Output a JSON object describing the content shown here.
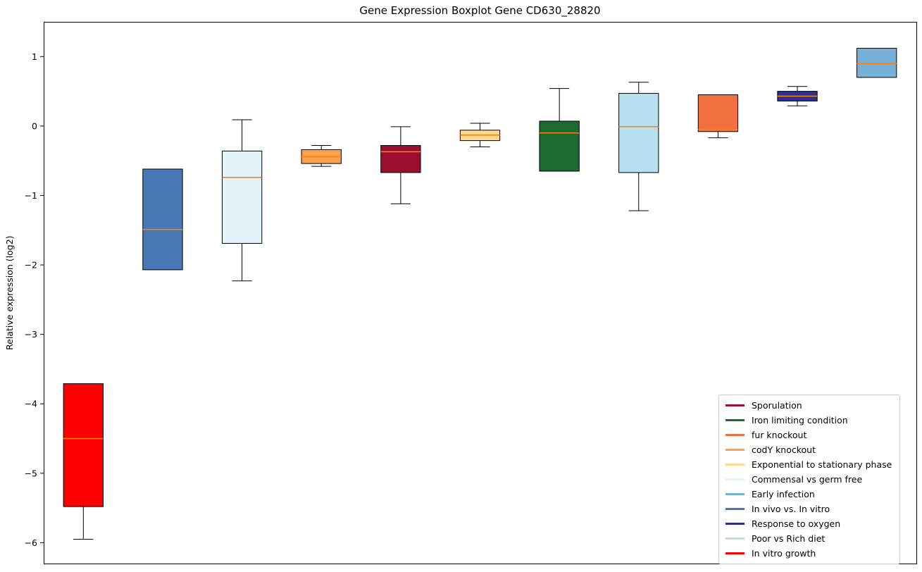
{
  "chart_data": {
    "type": "boxplot",
    "title": "Gene Expression Boxplot Gene CD630_28820",
    "xlabel": "",
    "ylabel": "Relative expression (log2)",
    "ylim": [
      -6.3,
      1.5
    ],
    "yticks": [
      1,
      0,
      -1,
      -2,
      -3,
      -4,
      -5,
      -6
    ],
    "grid": false,
    "median_color": "#ff7f0e",
    "legend_position": "lower right",
    "boxes": [
      {
        "label": "In vitro growth",
        "color": "#ff0000",
        "whisker_low": -5.95,
        "q1": -5.48,
        "median": -4.5,
        "q3": -3.71,
        "whisker_high": -3.71
      },
      {
        "label": "In vivo vs. In vitro",
        "color": "#4878b4",
        "whisker_low": -2.07,
        "q1": -2.07,
        "median": -1.49,
        "q3": -0.62,
        "whisker_high": -0.62
      },
      {
        "label": "Commensal vs germ free",
        "color": "#e1f3f9",
        "whisker_low": -2.23,
        "q1": -1.69,
        "median": -0.74,
        "q3": -0.36,
        "whisker_high": 0.09
      },
      {
        "label": "codY knockout",
        "color": "#ffa050",
        "whisker_low": -0.58,
        "q1": -0.54,
        "median": -0.44,
        "q3": -0.34,
        "whisker_high": -0.28
      },
      {
        "label": "Sporulation",
        "color": "#9c0e2e",
        "whisker_low": -1.12,
        "q1": -0.67,
        "median": -0.37,
        "q3": -0.28,
        "whisker_high": -0.01
      },
      {
        "label": "Exponential to stationary phase",
        "color": "#ffd98e",
        "whisker_low": -0.3,
        "q1": -0.21,
        "median": -0.13,
        "q3": -0.06,
        "whisker_high": 0.04
      },
      {
        "label": "Iron limiting condition",
        "color": "#1d6b2f",
        "whisker_low": -0.65,
        "q1": -0.65,
        "median": -0.1,
        "q3": 0.07,
        "whisker_high": 0.54
      },
      {
        "label": "Poor vs Rich diet",
        "color": "#b6e0ef",
        "whisker_low": -1.22,
        "q1": -0.67,
        "median": -0.01,
        "q3": 0.47,
        "whisker_high": 0.63
      },
      {
        "label": "fur knockout",
        "color": "#f26f40",
        "whisker_low": -0.17,
        "q1": -0.08,
        "median": -0.05,
        "q3": 0.45,
        "whisker_high": 0.45
      },
      {
        "label": "Response to oxygen",
        "color": "#2d2f8e",
        "whisker_low": 0.29,
        "q1": 0.36,
        "median": 0.43,
        "q3": 0.5,
        "whisker_high": 0.57
      },
      {
        "label": "Early infection",
        "color": "#77b0d8",
        "whisker_low": 0.7,
        "q1": 0.7,
        "median": 0.9,
        "q3": 1.12,
        "whisker_high": 1.12
      }
    ],
    "legend": [
      {
        "label": "Sporulation",
        "color": "#9c0e2e"
      },
      {
        "label": "Iron limiting condition",
        "color": "#1d6b2f"
      },
      {
        "label": "fur knockout",
        "color": "#f26f40"
      },
      {
        "label": "codY knockout",
        "color": "#ffa050"
      },
      {
        "label": "Exponential to stationary phase",
        "color": "#ffd98e"
      },
      {
        "label": "Commensal vs germ free",
        "color": "#e1f3f9"
      },
      {
        "label": "Early infection",
        "color": "#77b0d8"
      },
      {
        "label": "In vivo vs. In vitro",
        "color": "#4878b4"
      },
      {
        "label": "Response to oxygen",
        "color": "#2d2f8e"
      },
      {
        "label": "Poor vs Rich diet",
        "color": "#b6e0ef"
      },
      {
        "label": "In vitro growth",
        "color": "#ff0000"
      }
    ]
  }
}
